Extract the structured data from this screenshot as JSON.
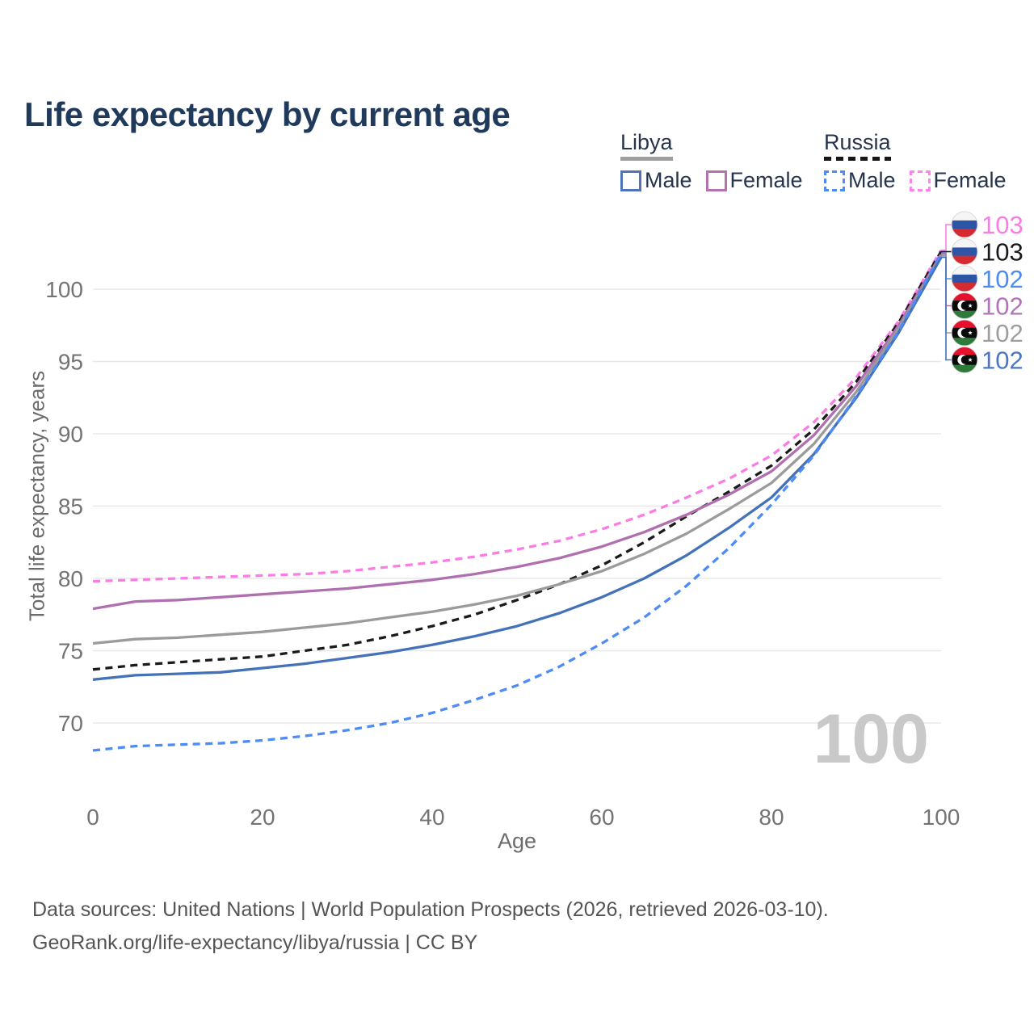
{
  "page": {
    "title": "Life expectancy by current age",
    "watermark_age": "100"
  },
  "legend": {
    "groups": [
      {
        "label": "Libya",
        "line_style": "solid",
        "line_color": "#9e9e9e",
        "items": [
          {
            "label": "Male",
            "color": "#4f74b8",
            "style": "solid"
          },
          {
            "label": "Female",
            "color": "#b473ae",
            "style": "solid"
          }
        ]
      },
      {
        "label": "Russia",
        "line_style": "dashed",
        "line_color": "#161616",
        "items": [
          {
            "label": "Male",
            "color": "#4d8bf5",
            "style": "dashed"
          },
          {
            "label": "Female",
            "color": "#ff85e8",
            "style": "dashed"
          }
        ]
      }
    ]
  },
  "chart_data": {
    "type": "line",
    "title": "Life expectancy by current age",
    "xlabel": "Age",
    "ylabel": "Total life expectancy, years",
    "xlim": [
      0,
      100
    ],
    "ylim": [
      66,
      104
    ],
    "xticks": [
      0,
      20,
      40,
      60,
      80,
      100
    ],
    "yticks": [
      70,
      75,
      80,
      85,
      90,
      95,
      100
    ],
    "grid": "horizontal",
    "legend_position": "top-right",
    "x": [
      0,
      5,
      10,
      15,
      20,
      25,
      30,
      35,
      40,
      45,
      50,
      55,
      60,
      65,
      70,
      75,
      80,
      85,
      90,
      95,
      100
    ],
    "series": [
      {
        "name": "Russia — Female",
        "country": "Russia",
        "sex": "Female",
        "flag": "russia",
        "style": "dashed",
        "color": "#fb7de4",
        "end_label": "103",
        "end_label_color": "#fb7de4",
        "values": [
          79.8,
          79.9,
          80.0,
          80.1,
          80.2,
          80.3,
          80.5,
          80.8,
          81.1,
          81.5,
          82.0,
          82.6,
          83.4,
          84.4,
          85.6,
          86.9,
          88.5,
          90.8,
          93.9,
          97.8,
          102.7
        ]
      },
      {
        "name": "Russia — Both sexes",
        "country": "Russia",
        "sex": "Both sexes",
        "flag": "russia",
        "style": "dashed",
        "color": "#1a1a1a",
        "end_label": "103",
        "end_label_color": "#1a1a1a",
        "values": [
          73.7,
          74.0,
          74.2,
          74.4,
          74.6,
          75.0,
          75.4,
          76.0,
          76.7,
          77.5,
          78.5,
          79.6,
          80.9,
          82.5,
          84.3,
          86.0,
          87.8,
          90.3,
          93.6,
          97.7,
          102.6
        ]
      },
      {
        "name": "Russia — Male",
        "country": "Russia",
        "sex": "Male",
        "flag": "russia",
        "style": "dashed",
        "color": "#4d8bf5",
        "end_label": "102",
        "end_label_color": "#4d8bf5",
        "values": [
          68.1,
          68.4,
          68.5,
          68.6,
          68.8,
          69.1,
          69.5,
          70.0,
          70.7,
          71.6,
          72.6,
          73.9,
          75.5,
          77.3,
          79.5,
          82.1,
          85.1,
          88.5,
          92.6,
          97.1,
          102.5
        ]
      },
      {
        "name": "Libya — Female",
        "country": "Libya",
        "sex": "Female",
        "flag": "libya",
        "style": "solid",
        "color": "#b06fae",
        "end_label": "102",
        "end_label_color": "#b273b8",
        "values": [
          77.9,
          78.4,
          78.5,
          78.7,
          78.9,
          79.1,
          79.3,
          79.6,
          79.9,
          80.3,
          80.8,
          81.4,
          82.2,
          83.2,
          84.4,
          85.8,
          87.4,
          89.9,
          93.3,
          97.5,
          102.4
        ]
      },
      {
        "name": "Libya — Both sexes",
        "country": "Libya",
        "sex": "Both sexes",
        "flag": "libya",
        "style": "solid",
        "color": "#9b9b9b",
        "end_label": "102",
        "end_label_color": "#9e9e9e",
        "values": [
          75.5,
          75.8,
          75.9,
          76.1,
          76.3,
          76.6,
          76.9,
          77.3,
          77.7,
          78.2,
          78.8,
          79.6,
          80.5,
          81.7,
          83.1,
          84.8,
          86.6,
          89.3,
          92.9,
          97.3,
          102.3
        ]
      },
      {
        "name": "Libya — Male",
        "country": "Libya",
        "sex": "Male",
        "flag": "libya",
        "style": "solid",
        "color": "#4472b9",
        "end_label": "102",
        "end_label_color": "#4b76c4",
        "values": [
          73.0,
          73.3,
          73.4,
          73.5,
          73.8,
          74.1,
          74.5,
          74.9,
          75.4,
          76.0,
          76.7,
          77.6,
          78.7,
          80.0,
          81.6,
          83.5,
          85.6,
          88.6,
          92.5,
          97.0,
          102.2
        ]
      }
    ]
  },
  "footer": {
    "line1": "Data sources: United Nations | World Population Prospects (2026, retrieved 2026-03-10).",
    "line2": "GeoRank.org/life-expectancy/libya/russia | CC BY"
  }
}
